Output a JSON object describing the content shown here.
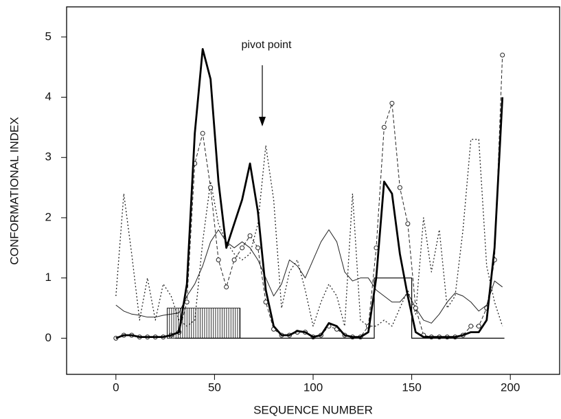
{
  "chart_data": {
    "type": "line",
    "xlabel": "SEQUENCE  NUMBER",
    "ylabel": "CONFORMATIONAL  INDEX",
    "annotation": "pivot point",
    "xlim": [
      -25,
      225
    ],
    "ylim": [
      -0.6,
      5.5
    ],
    "xticks": [
      0,
      50,
      100,
      150,
      200
    ],
    "yticks": [
      0,
      1,
      2,
      3,
      4,
      5
    ],
    "x": [
      0,
      4,
      8,
      12,
      16,
      20,
      24,
      28,
      32,
      36,
      40,
      44,
      48,
      52,
      56,
      60,
      64,
      68,
      72,
      76,
      80,
      84,
      88,
      92,
      96,
      100,
      104,
      108,
      112,
      116,
      120,
      124,
      128,
      132,
      136,
      140,
      144,
      148,
      152,
      156,
      160,
      164,
      168,
      172,
      176,
      180,
      184,
      188,
      192,
      196
    ],
    "series": [
      {
        "style": "thin",
        "color": "#222",
        "values": [
          0.55,
          0.45,
          0.4,
          0.38,
          0.35,
          0.35,
          0.38,
          0.4,
          0.42,
          0.7,
          0.9,
          1.2,
          1.6,
          1.8,
          1.6,
          1.5,
          1.6,
          1.5,
          1.3,
          1.0,
          0.7,
          0.9,
          1.3,
          1.2,
          1.0,
          1.3,
          1.6,
          1.8,
          1.6,
          1.1,
          0.95,
          1.0,
          1.0,
          0.8,
          0.7,
          0.6,
          0.6,
          0.75,
          0.5,
          0.3,
          0.25,
          0.4,
          0.6,
          0.75,
          0.7,
          0.6,
          0.45,
          0.55,
          0.95,
          0.85
        ]
      },
      {
        "style": "dotted",
        "color": "#222",
        "values": [
          0.7,
          2.4,
          1.4,
          0.3,
          1.0,
          0.3,
          0.9,
          0.7,
          0.3,
          0.2,
          0.3,
          1.6,
          2.6,
          1.9,
          1.6,
          1.4,
          1.3,
          1.4,
          1.9,
          3.2,
          2.3,
          0.5,
          1.1,
          1.3,
          0.8,
          0.2,
          0.6,
          0.9,
          0.7,
          0.2,
          2.4,
          0.3,
          0.2,
          0.2,
          0.3,
          0.2,
          0.5,
          0.8,
          0.4,
          2.0,
          1.1,
          1.8,
          0.5,
          0.7,
          1.8,
          3.3,
          3.3,
          1.2,
          0.6,
          0.2
        ]
      },
      {
        "style": "dashed-circles",
        "color": "#222",
        "values": [
          0,
          0.05,
          0.05,
          0.02,
          0.02,
          0.02,
          0.02,
          0.05,
          0.1,
          0.6,
          2.9,
          3.4,
          2.5,
          1.3,
          0.85,
          1.3,
          1.5,
          1.7,
          1.5,
          0.6,
          0.15,
          0.05,
          0.05,
          0.1,
          0.1,
          0.02,
          0.05,
          0.2,
          0.15,
          0.05,
          0.02,
          0.02,
          0.2,
          1.5,
          3.5,
          3.9,
          2.5,
          1.9,
          0.5,
          0.05,
          0.02,
          0.02,
          0.02,
          0.02,
          0.05,
          0.2,
          0.2,
          0.5,
          1.3,
          4.7
        ]
      },
      {
        "style": "thick",
        "color": "#000",
        "values": [
          0,
          0.05,
          0.05,
          0.02,
          0.02,
          0.02,
          0.02,
          0.05,
          0.1,
          0.9,
          3.4,
          4.8,
          4.3,
          2.6,
          1.5,
          1.9,
          2.3,
          2.9,
          2.1,
          0.8,
          0.2,
          0.05,
          0.05,
          0.12,
          0.1,
          0.02,
          0.05,
          0.25,
          0.2,
          0.05,
          0.02,
          0.02,
          0.1,
          1.0,
          2.6,
          2.4,
          1.4,
          0.7,
          0.1,
          0.02,
          0.02,
          0.02,
          0.02,
          0.02,
          0.05,
          0.1,
          0.1,
          0.3,
          1.5,
          4.0
        ]
      },
      {
        "style": "step",
        "color": "#000",
        "x": [
          30,
          131,
          131,
          150,
          150,
          197
        ],
        "values": [
          0,
          0,
          1,
          1,
          0,
          0
        ]
      },
      {
        "style": "hatch",
        "color": "#000",
        "x": [
          26,
          63
        ],
        "values": [
          0.5,
          0.5
        ]
      }
    ]
  }
}
